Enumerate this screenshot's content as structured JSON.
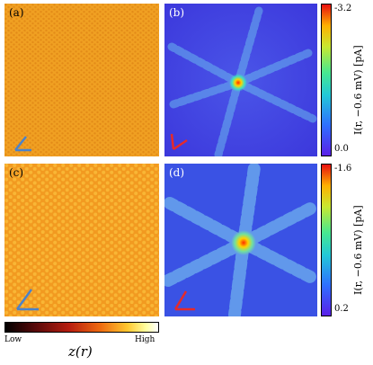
{
  "panels": {
    "a": {
      "label": "(a)"
    },
    "b": {
      "label": "(b)"
    },
    "c": {
      "label": "(c)"
    },
    "d": {
      "label": "(d)"
    }
  },
  "colorbar_top": {
    "max_label": "-3.2",
    "min_label": "0.0",
    "axis_label": "I(r, −0.6 mV) [pA]"
  },
  "colorbar_bottom": {
    "max_label": "-1.6",
    "min_label": "0.2",
    "axis_label": "I(r, −0.6 mV) [pA]"
  },
  "height_bar": {
    "low_label": "Low",
    "high_label": "High",
    "axis_label": "z(r)"
  },
  "colors": {
    "topo_base": "#f0a022",
    "topo_dark": "#d97a10",
    "topo_light": "#ffd24a",
    "map_bg": "#3e3ce0",
    "map_arm": "#5fb8e6",
    "arrow_blue": "#4b82c8",
    "arrow_red": "#e52a2a"
  }
}
